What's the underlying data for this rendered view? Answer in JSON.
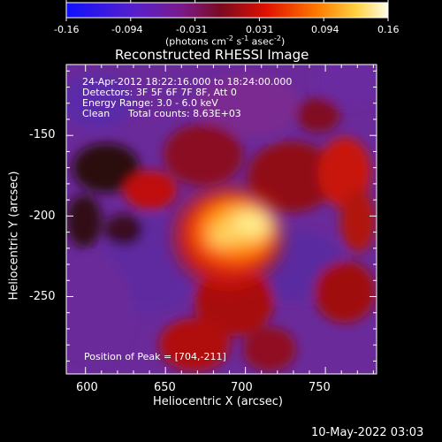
{
  "colorbar": {
    "tick_labels": [
      "-0.16",
      "-0.094",
      "-0.031",
      "0.031",
      "0.094",
      "0.16"
    ],
    "units": "(photons cm",
    "units_exp1": "-2",
    "units_s": " s",
    "units_exp2": "-1",
    "units_asec": " asec",
    "units_exp3": "-2",
    "units_close": ")",
    "colors": [
      "#2020ff",
      "#6a1ab8",
      "#8a1040",
      "#d01000",
      "#ff6a00",
      "#ffe060",
      "#ffffe0"
    ]
  },
  "title": "Reconstructed RHESSI Image",
  "info": {
    "line1": "24-Apr-2012 18:22:16.000 to 18:24:00.000",
    "line2": "Detectors: 3F 5F 6F 7F 8F, Att 0",
    "line3": "Energy Range: 3.0 - 6.0 keV",
    "line4_left": "Clean",
    "line4_right": "Total counts: 8.63E+03",
    "peak": "Position of Peak = [704,-211]"
  },
  "axes": {
    "xlabel": "Heliocentric X (arcsec)",
    "ylabel": "Heliocentric Y (arcsec)",
    "xticks": [
      "600",
      "650",
      "700",
      "750"
    ],
    "yticks": [
      "-150",
      "-200",
      "-250"
    ],
    "xrange": [
      588,
      782
    ],
    "yrange": [
      -298,
      -106
    ]
  },
  "footer": "10-May-2022 03:03"
}
